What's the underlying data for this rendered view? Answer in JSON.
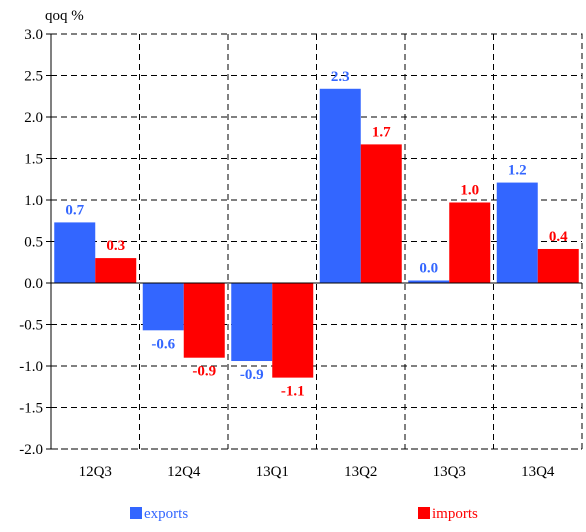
{
  "chart_data": {
    "type": "bar",
    "unit_label": "qoq %",
    "categories": [
      "12Q3",
      "12Q4",
      "13Q1",
      "13Q2",
      "13Q3",
      "13Q4"
    ],
    "series": [
      {
        "name": "exports",
        "color": "#3366ff",
        "values": [
          0.73,
          -0.57,
          -0.94,
          2.34,
          0.03,
          1.21
        ],
        "labels": [
          "0.7",
          "-0.6",
          "-0.9",
          "2.3",
          "0.0",
          "1.2"
        ]
      },
      {
        "name": "imports",
        "color": "#ff0000",
        "values": [
          0.3,
          -0.9,
          -1.14,
          1.67,
          0.97,
          0.41
        ],
        "labels": [
          "0.3",
          "-0.9",
          "-1.1",
          "1.7",
          "1.0",
          "0.4"
        ]
      }
    ],
    "ylim": [
      -2.0,
      3.0
    ],
    "yticks": [
      "3.0",
      "2.5",
      "2.0",
      "1.5",
      "1.0",
      "0.5",
      "0.0",
      "-0.5",
      "-1.0",
      "-1.5",
      "-2.0"
    ],
    "grid": true,
    "legend_position": "bottom"
  }
}
